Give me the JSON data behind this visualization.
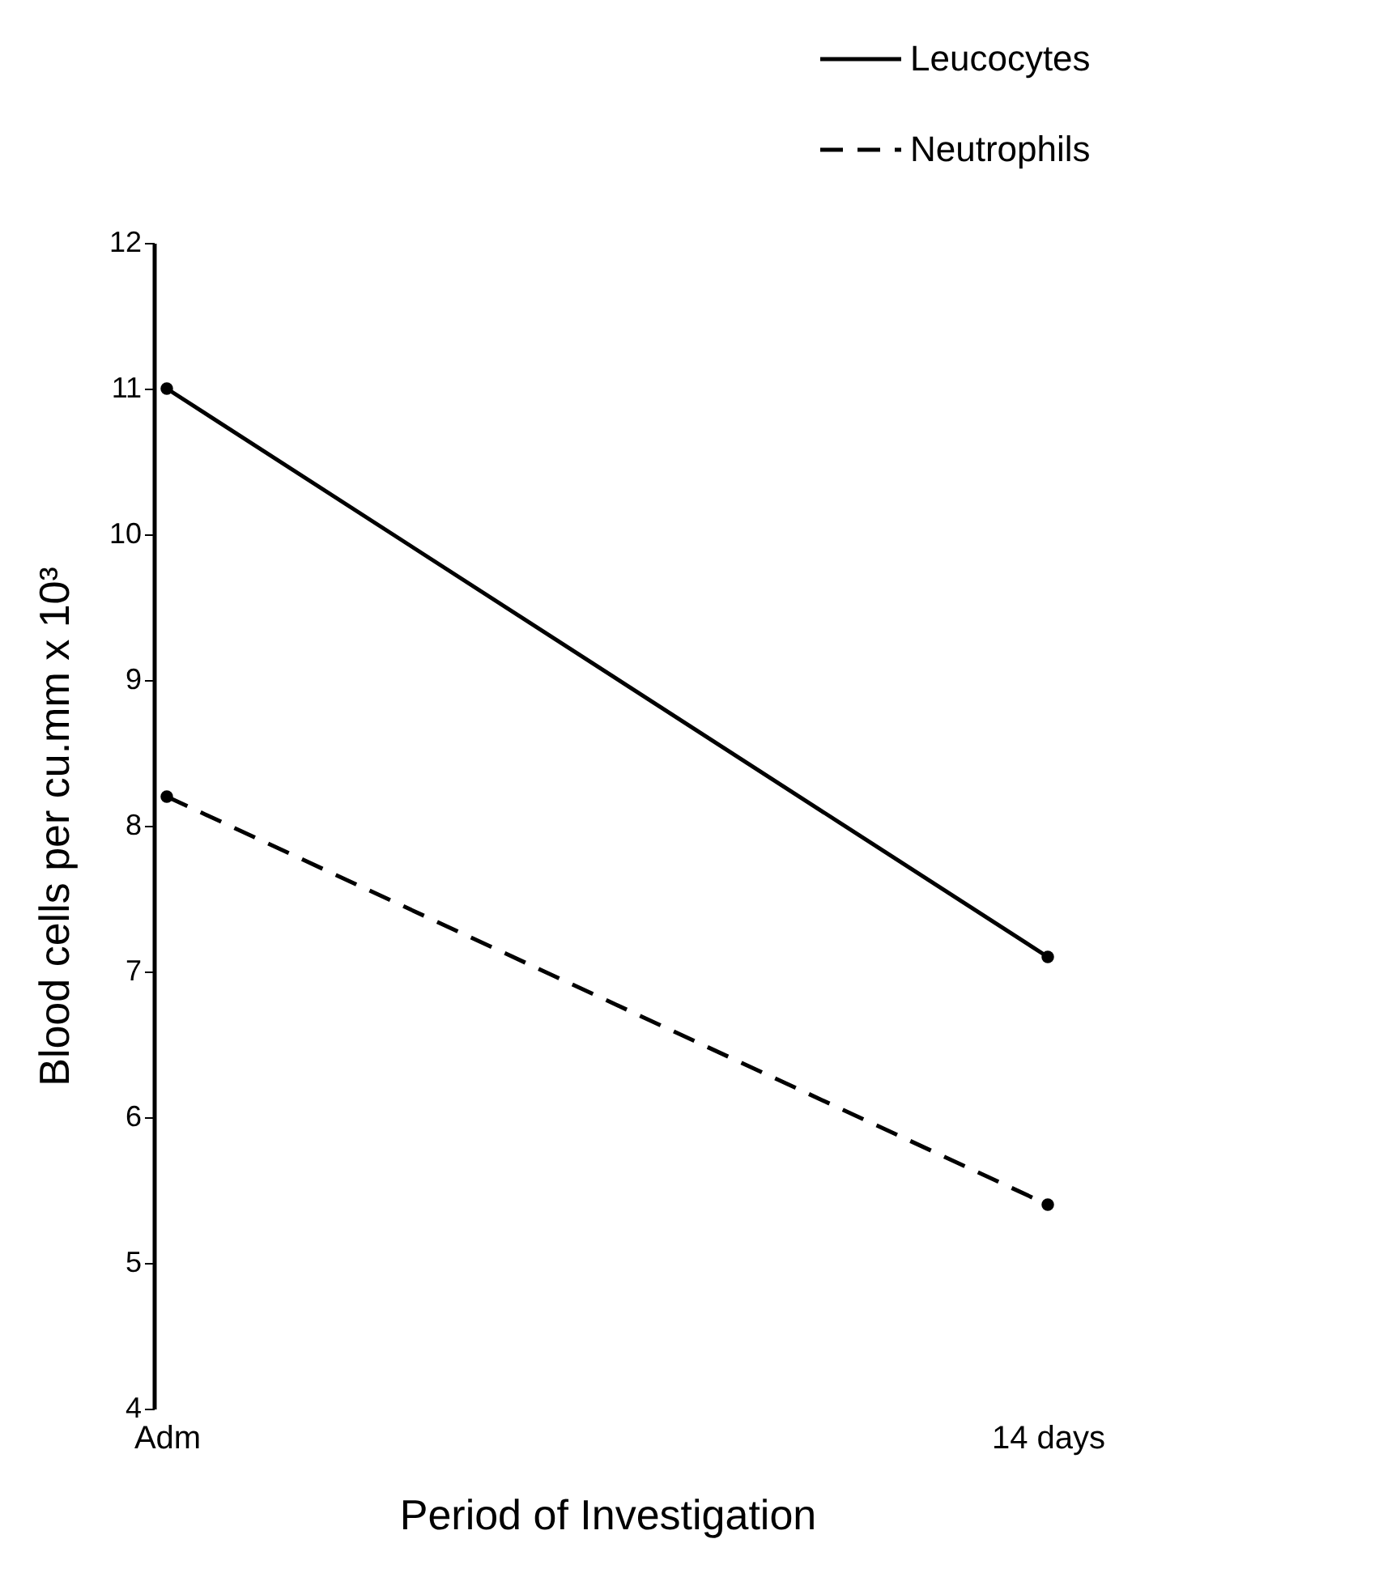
{
  "chart_data": {
    "type": "line",
    "xlabel": "Period of Investigation",
    "ylabel": "Blood cells per cu.mm x 10³",
    "categories": [
      "Adm",
      "14 days"
    ],
    "series": [
      {
        "name": "Leucocytes",
        "color": "#000000",
        "values": [
          11,
          7.1
        ],
        "line_style": "solid"
      },
      {
        "name": "Neutrophils",
        "color": "#000000",
        "values": [
          8.2,
          5.4
        ],
        "line_style": "dashed"
      }
    ],
    "ylim": [
      4,
      12
    ],
    "yticks": [
      4,
      5,
      6,
      7,
      8,
      9,
      10,
      11,
      12
    ],
    "grid": false,
    "legend": "top right",
    "marker": "circle"
  }
}
